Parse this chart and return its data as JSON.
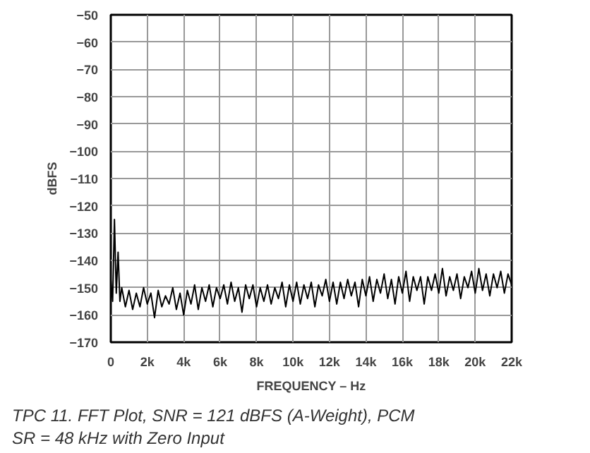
{
  "chart_data": {
    "type": "line",
    "xlabel": "FREQUENCY – Hz",
    "ylabel": "dBFS",
    "annotations": [
      "TPC 11.  FFT Plot, SNR = 121 dBFS (A-Weight), PCM\nSR = 48 kHz with Zero Input"
    ],
    "xlim": [
      0,
      22000
    ],
    "ylim": [
      -170,
      -50
    ],
    "xticks": [
      0,
      {
        "value": 2000,
        "label": "2k"
      },
      {
        "value": 4000,
        "label": "4k"
      },
      {
        "value": 6000,
        "label": "6k"
      },
      {
        "value": 8000,
        "label": "8k"
      },
      {
        "value": 10000,
        "label": "10k"
      },
      {
        "value": 12000,
        "label": "12k"
      },
      {
        "value": 14000,
        "label": "14k"
      },
      {
        "value": 16000,
        "label": "16k"
      },
      {
        "value": 18000,
        "label": "18k"
      },
      {
        "value": 20000,
        "label": "20k"
      },
      {
        "value": 22000,
        "label": "22k"
      }
    ],
    "yticks": [
      -170,
      -160,
      -150,
      -140,
      -130,
      -120,
      -110,
      -100,
      -90,
      -80,
      -70,
      -60,
      -50
    ],
    "grid": true,
    "marker": "none",
    "line_style": "solid",
    "series": [
      {
        "color": "#000000",
        "x": [
          0,
          100,
          200,
          300,
          400,
          500,
          600,
          800,
          1000,
          1200,
          1400,
          1600,
          1800,
          2000,
          2200,
          2400,
          2600,
          2800,
          3000,
          3200,
          3400,
          3600,
          3800,
          4000,
          4200,
          4400,
          4600,
          4800,
          5000,
          5200,
          5400,
          5600,
          5800,
          6000,
          6200,
          6400,
          6600,
          6800,
          7000,
          7200,
          7400,
          7600,
          7800,
          8000,
          8200,
          8400,
          8600,
          8800,
          9000,
          9200,
          9400,
          9600,
          9800,
          10000,
          10200,
          10400,
          10600,
          10800,
          11000,
          11200,
          11400,
          11600,
          11800,
          12000,
          12200,
          12400,
          12600,
          12800,
          13000,
          13200,
          13400,
          13600,
          13800,
          14000,
          14200,
          14400,
          14600,
          14800,
          15000,
          15200,
          15400,
          15600,
          15800,
          16000,
          16200,
          16400,
          16600,
          16800,
          17000,
          17200,
          17400,
          17600,
          17800,
          18000,
          18200,
          18400,
          18600,
          18800,
          19000,
          19200,
          19400,
          19600,
          19800,
          20000,
          20200,
          20400,
          20600,
          20800,
          21000,
          21200,
          21400,
          21600,
          21800,
          22000
        ],
        "values": [
          -147,
          -155,
          -125,
          -152,
          -137,
          -155,
          -150,
          -157,
          -151,
          -158,
          -152,
          -157,
          -150,
          -156,
          -152,
          -161,
          -151,
          -157,
          -153,
          -156,
          -150,
          -158,
          -152,
          -160,
          -151,
          -156,
          -149,
          -158,
          -150,
          -155,
          -149,
          -157,
          -150,
          -154,
          -149,
          -156,
          -148,
          -155,
          -150,
          -159,
          -149,
          -154,
          -149,
          -157,
          -150,
          -155,
          -149,
          -156,
          -150,
          -154,
          -148,
          -157,
          -149,
          -155,
          -148,
          -156,
          -149,
          -154,
          -148,
          -157,
          -149,
          -153,
          -147,
          -155,
          -148,
          -156,
          -148,
          -154,
          -147,
          -153,
          -148,
          -157,
          -147,
          -153,
          -146,
          -155,
          -147,
          -152,
          -145,
          -154,
          -147,
          -156,
          -146,
          -152,
          -144,
          -155,
          -146,
          -151,
          -146,
          -156,
          -146,
          -151,
          -145,
          -152,
          -143,
          -153,
          -146,
          -151,
          -145,
          -154,
          -146,
          -150,
          -144,
          -152,
          -143,
          -151,
          -145,
          -153,
          -145,
          -150,
          -144,
          -152,
          -145,
          -149
        ]
      }
    ]
  }
}
